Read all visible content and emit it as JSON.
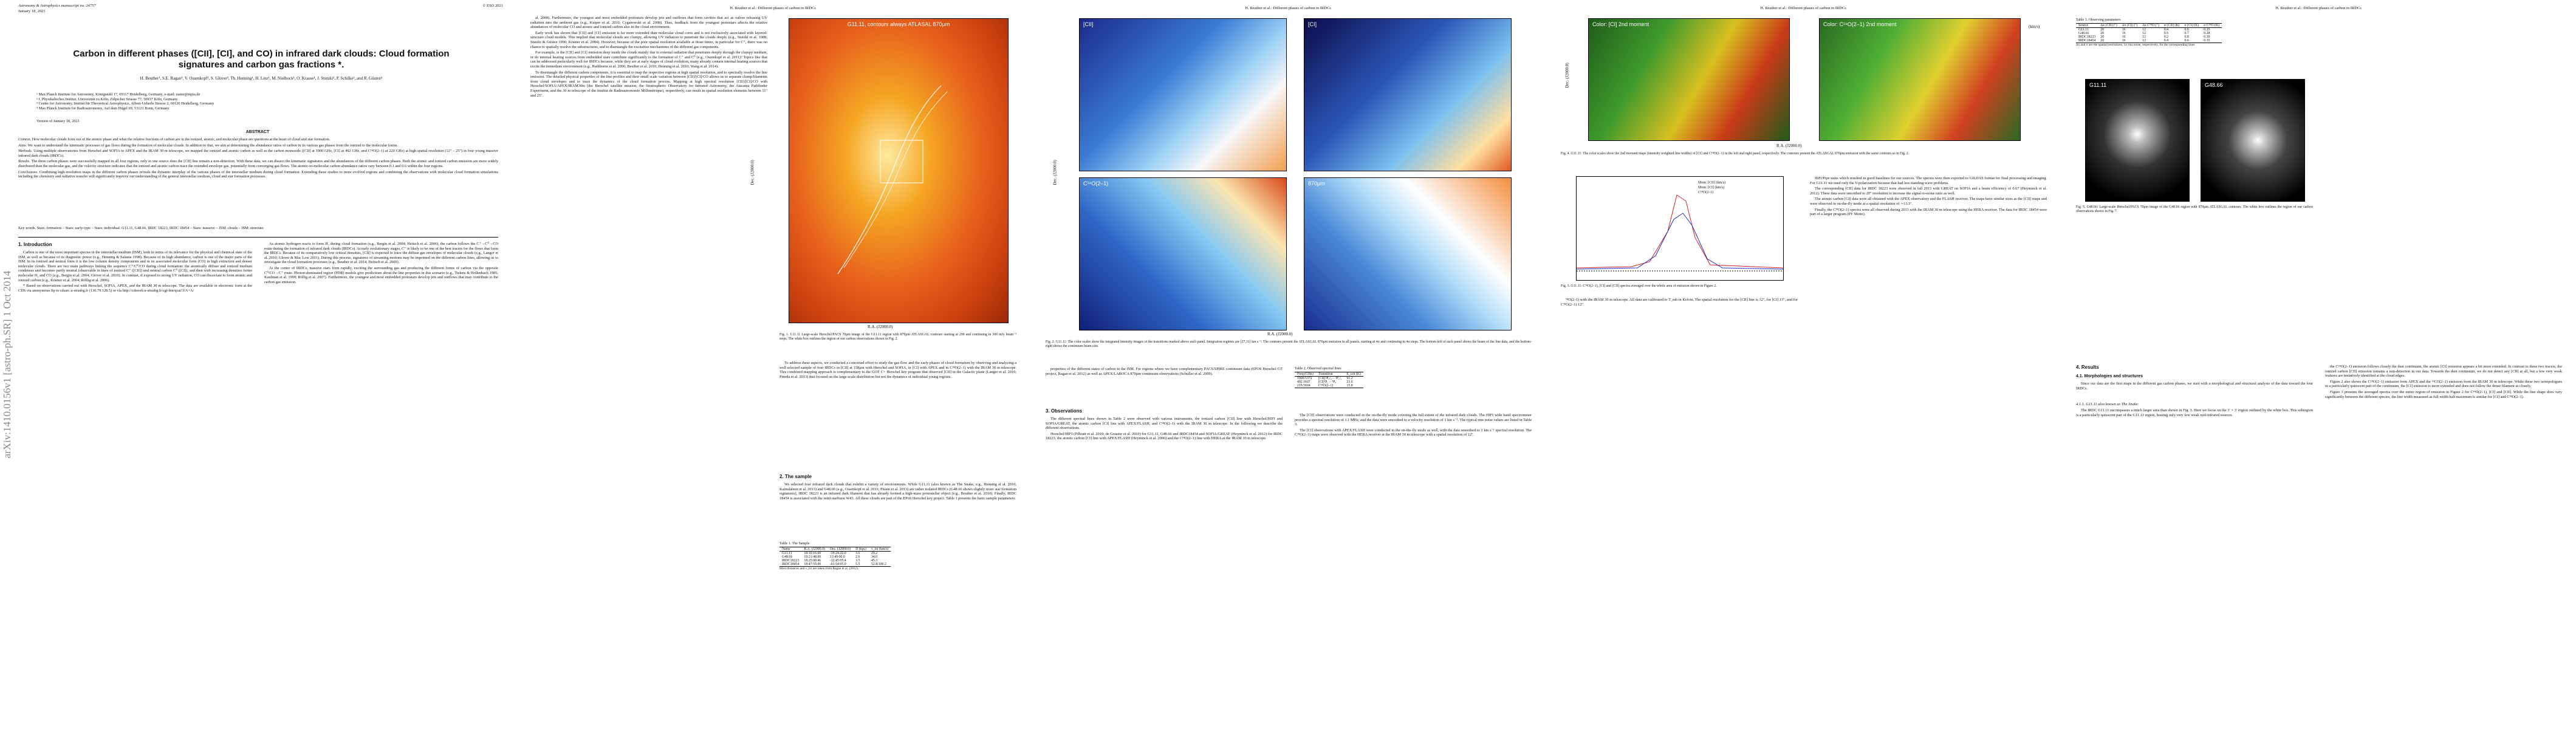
{
  "sidebar": "arXiv:1410.0156v1 [astro-ph.SR] 1 Oct 2014",
  "page1": {
    "journal": "Astronomy & Astrophysics manuscript no. 24757",
    "copyright": "© ESO 2021",
    "date": "January 18, 2021",
    "title": "Carbon in different phases ([CII], [CI], and CO) in infrared dark clouds: Cloud formation signatures and carbon gas fractions *.",
    "authors": "H. Beuther¹, S.E. Ragan¹, V. Ossenkopf², S. Glover³, Th. Henning¹, H. Linz¹, M. Nielbock¹, O. Krause¹, J. Stutzki², P. Schilke², and R. Güsten⁴",
    "affiliations": [
      "¹ Max Planck Institute for Astronomy, Königstuhl 17, 69117 Heidelberg, Germany, e-mail: name@mpia.de",
      "² I. Physikalisches Institut, Universität zu Köln, Zülpicher Strasse 77, 50937 Köln, Germany",
      "³ Center for Astronomy, Institut für Theoretical Astrophysics, Albert-Ueberle Strasse 2, 69120 Heidelberg, Germany",
      "⁴ Max Planck Institute for Radioastronomy, Auf dem Hügel 69, 53121 Bonn, Germany"
    ],
    "version": "Version of January 18, 2021",
    "abstract_heading": "ABSTRACT",
    "abstract": [
      {
        "label": "Context.",
        "text": "How molecular clouds form out of the atomic phase and what the relative fractions of carbon are in the ionized, atomic, and molecular phase are questions at the heart of cloud and star formation."
      },
      {
        "label": "Aims.",
        "text": "We want to understand the kinematic processes of gas flows during the formation of molecular clouds. In addition to that, we aim at determining the abundance ratios of carbon in its various gas phases from the ionized to the molecular forms."
      },
      {
        "label": "Methods.",
        "text": "Using multiple observatories from Herschel and SOFIA to APEX and the IRAM 30 m telescope, we mapped the ionized and atomic carbon as well as the carbon monoxide ([CII] at 1900 GHz, [CI] at 492 GHz, and C¹⁸O(2–1) at 220 GHz) at high spatial resolution (12″ – 25″) in four young massive infrared dark clouds (IRDCs)."
      },
      {
        "label": "Results.",
        "text": "The three carbon phases were successfully mapped in all four regions, only in one source does the [CII] line remain a non-detection. With these data, we can dissect the kinematic signatures and the abundances of the different carbon phases. Both the atomic and ionized carbon emission are more widely distributed than the molecular gas, and the velocity structure indicates that the ionized and atomic carbon trace the extended envelope gas, potentially from converging gas flows. The atomic-to-molecular carbon abundance ratios vary between 0.1 and 0.6 within the four regions."
      },
      {
        "label": "Conclusions.",
        "text": "Combining high-resolution maps in the different carbon phases reveals the dynamic interplay of the various phases of the interstellar medium during cloud formation. Extending these studies to more evolved regions and combining the observations with molecular cloud formation simulations including the chemistry and radiative transfer will significantly improve our understanding of the general interstellar medium, cloud and star formation processes."
      }
    ],
    "keywords": "Key words. Stars: formation – Stars: early-type – Stars: individual: G11.11, G48.66, IRDC 18223, IRDC 18454 – Stars: massive – ISM: clouds – ISM: structure",
    "intro_heading": "1. Introduction",
    "col1": [
      "Carbon is one of the most important species in the interstellar medium (ISM), both in terms of its relevance for the physical and chemical state of the ISM, as well as because of its diagnostic power (e.g., Henning & Salama 1998). Because of its high abundance, carbon is one of the major parts of the ISM. In its ionized and neutral form it is the low column density components and in its associated molecular form (CO) in high extinction and denser molecular clouds. There are two main pathways linking the sequence C⁺/C⁰/CO during cloud formation: the atomically diffuse and ionized medium condenses and becomes partly neutral (observable in lines of ionized C⁺ ([CII]) and neutral carbon C⁰ ([CI]), and then with increasing densities forms molecular H₂ and CO (e.g., Bergin et al. 2004; Glover et al. 2010). In contrast, if exposed to strong UV radiation, CO can dissociate to form atomic and ionized carbon (e.g., Kramer et al. 2004; Röllig et al. 2006).",
      "* Based on observations carried out with Herschel, SOFIA, APEX, and the IRAM 30 m telescope. The data are available in electronic form at the CDS via anonymous ftp to cdsarc.u-strasbg.fr (130.79.128.5) or via http://cdsweb.u-strasbg.fr/cgi-bin/qcat?J/A+A/"
    ],
    "col2": [
      "As atomic hydrogen reacts to form H₂ during cloud formation (e.g., Bergin et al. 2004; Heitsch et al. 2006), the carbon follows the C⁺→C⁰→CO route during the formation of infrared dark clouds (IRDCs). At early evolutionary stages, C⁺ is likely to be one of the best tracers for the flows that form the IRDCs. Because of its comparatively low critical densities, [CII] is expected to trace the diffuse gas envelopes of molecular clouds (e.g., Langer et al. 2010; Glover & Mac Low 2011). During this process, signatures of streaming motions may be imprinted on the different carbon lines, allowing us to investigate the cloud formation processes (e.g., Beuther et al. 2014; Heitsch et al. 2009).",
      "At the center of IRDCs, massive stars form rapidly, exciting the surrounding gas and producing the different forms of carbon via the opposite C⁰/CO→C⁺ route. Photon-dominated region (PDR) models give predictions about the line properties in this scenario (e.g., Tielens & Hollenbach 1985; Kaufman et al. 1999; Röllig et al. 2007). Furthermore, the youngest and most embedded protostars develop jets and outflows that may contribute to the carbon gas emission."
    ]
  },
  "page2": {
    "header": "H. Beuther et al.: Different phases of carbon in IRDCs",
    "col1": [
      "al. 2008). Furthermore, the youngest and most embedded protostars develop jets and outflows that form cavities that act as valves releasing UV radiation into the ambient gas (e.g., Kuiper et al. 2010; Cyganowski et al. 2008). Thus, feedback from the youngest protostars affects the relative abundances of molecular CO and atomic and ionized carbon also in the cloud environment.",
      "Early work has shown that [CII] and [CI] emission is far more extended than molecular cloud cores and is not exclusively associated with layered-structure cloud models. This implied that molecular clouds are clumpy, allowing UV radiation to penetrate the clouds deeply (e.g., Stutzki et al. 1988; Stutzki & Güsten 1990; Kramer et al. 2004). However, because of the poor spatial resolution available at those times, in particular for C⁺, there was no chance to spatially resolve the substructures, and to disentangle the excitation mechanisms of the different gas components.",
      "For example, is the [CII] and [CI] emission deep inside the clouds mainly due to external radiation that penetrates deeply through the clumpy medium, or do internal heating sources from embedded stars contribute significantly to the formation of C⁺ and C⁰ (e.g., Ossenkopf et al. 2011)? Topics like that can be addressed particularly well for IRDCs because, while they are at early stages of cloud evolution, many already contain internal heating sources that excite the immediate environment (e.g., Rathborne et al. 2006; Beuther et al. 2010; Henning et al. 2010; Wang et al. 2014).",
      "To disentangle the different carbon components, it is essential to map the respective regions at high spatial resolution, and to spectrally resolve the line emission. The detailed physical properties of the line profiles and their small scale variation between [CII]/[CI]/CO allows us to separate clump/filaments from cloud envelopes and to trace the dynamics of the cloud formation process. Mapping at high spectral resolution [CII]/[CI]/CO with Herschel/SOFIA/APEX/IRAM30m (the Herschel satellite mission, the Stratospheric Observatory for Infrared Astronomy, the Atacama Pathfinder Experiment, and the 30 m telescope of the Institut de Radioastronomie Millimétrique), respectively, can result in spatial resolution elements between 11″ and 25″."
    ],
    "fig1_title": "G11.11, contours always ATLASAL 870μm",
    "fig1_ra": "R.A. (J2000.0)",
    "fig1_dec": "Dec. (J2000.0)",
    "fig1_caption": "Fig. 1. G11.11 Large-scale Herschel/PACS 70μm image of the G11.11 region with 870μm ATLASGAL contours starting at 200 and continuing in 300 mJy beam⁻¹ steps. The white box outlines the region of our carbon observations shown in Fig. 2.",
    "col2": [
      "To address these aspects, we conducted a concerted effort to study the gas flow and the early phases of cloud formation by observing and analyzing a well selected sample of four IRDCs in [CII] at 158μm with Herschel and SOFIA, in [CI] with APEX and in C¹⁸O(2–1) with the IRAM 30 m telescope. This combined mapping approach is complementary to the GOT C+ Herschel key program that observed [CII] in the Galactic plane (Langer et al. 2010; Pineda et al. 2013) that focused on the large-scale distribution but not the dynamics of individual young regions."
    ],
    "sample_heading": "2. The sample",
    "sample_text": [
      "We selected four infrared dark clouds that exhibit a variety of environments. While G11.11 (also known as The Snake, e.g., Henning et al. 2010; Kainulainen et al. 2013) and G48.66 (e.g., Ossenkopf et al. 2011; Pitann et al. 2013) are rather isolated IRDCs (G48.66 shows slightly more star formation signatures), IRDC 18223 is an infrared dark filament that has already formed a high-mass protostellar object (e.g., Beuther et al. 2010). Finally, IRDC 18454 is associated with the mini-starburst W43. All these clouds are part of the EPoS Herschel key project. Table 1 presents the basic sample parameters."
    ],
    "table1": {
      "caption": "Table 1. The Sample",
      "columns": [
        "Name",
        "R.A. (J2000.0)",
        "Dec. (J2000.0)",
        "D (kpc)",
        "v_lsr (km/s)"
      ],
      "rows": [
        [
          "G11.11",
          "18:10:16.00",
          "-19:24:22.0",
          "3.6",
          "29.2"
        ],
        [
          "G48.66",
          "19:21:48.00",
          "13:49:00.0",
          "2.6",
          "34.0"
        ],
        [
          "IRDC18223",
          "18:25:08.46",
          "-12:45:05.4",
          "3.5",
          "45.3"
        ],
        [
          "IRDC18454",
          "18:47:59.00",
          "-01:54:05.0",
          "5.5",
          "52.8/100.2"
        ]
      ],
      "note": "Most distances and v_lsr are taken from Ragan et al. (2012)."
    }
  },
  "page3": {
    "header": "H. Beuther et al.: Different phases of carbon in IRDCs",
    "fig2_ra": "R.A. (J2000.0)",
    "fig2_dec": "Dec. (J2000.0)",
    "fig2_panels": [
      "[CII]",
      "[CI]",
      "C¹⁸O(2–1)",
      "870μm"
    ],
    "fig2_caption": "Fig. 2. G11.11: The color scales show the integrated intensity images of the transitions marked above each panel. Integration regimes are [27,31] km s⁻¹. The contours present the ATLASGAL 870μm emission in all panels, starting at 4σ and continuing in 4σ steps. The bottom-left of each panel shows the beam of the line data, and the bottom-right shows the continuum beam size.",
    "col1": [
      "properties of the different states of carbon in the ISM. For regions where we have complementary PACS/SPIRE continuum data (EPOS Herschel GT project, Ragan et al. 2012) as well as APEX/LABOCA 870μm continuum observations (Schuller et al. 2009)."
    ],
    "obs_heading": "3. Observations",
    "obs_text": [
      "The different spectral lines shown in Table 2 were observed with various instruments, the ionized carbon [CII] line with Herschel/HIFI and SOFIA/GREAT, the atomic carbon [CI] line with APEX/FLASH, and C¹⁸O(2–1) with the IRAM 30 m telescope. In the following we describe the different observations.",
      "Herschel/HIFI (Pilbratt et al. 2010; de Graauw et al. 2010) for G11.11, G48.66 and IRDC18454 and SOFIA/GREAT (Heyminck et al. 2012) for IRDC 18223, the atomic carbon [CI] line with APEX/FLASH (Heyminck et al. 2006) and the C¹⁸O(2–1) line with HERA at the IRAM 30 m telescope."
    ],
    "table2": {
      "caption": "Table 2. Observed spectral lines",
      "columns": [
        "Freq (GHz)",
        "Transition",
        "E_u/k (K)"
      ],
      "rows": [
        [
          "1900.5372",
          "[CII]²P₃/₂ – ²P₁/₂",
          "91.2"
        ],
        [
          "492.1607",
          "[CI]³P₁ – ³P₀",
          "23.6"
        ],
        [
          "219.5604",
          "C¹⁸O(2–1)",
          "15.8"
        ]
      ]
    },
    "col2": [
      "The [CII] observations were conducted in the on-the-fly mode covering the full extent of the infrared dark clouds. The HIFI wide band spectrometer provides a spectral resolution of 1.1 MHz, and the data were smoothed to a velocity resolution of 1 km s⁻¹. The typical rms noise values are listed in Table 3.",
      "The [CI] observations with APEX/FLASH were conducted in the on-the-fly mode as well, with the data smoothed to 1 km s⁻¹ spectral resolution. The C¹⁸O(2–1) maps were observed with the HERA receiver at the IRAM 30 m telescope with a spatial resolution of 12″."
    ]
  },
  "page4": {
    "header": "H. Beuther et al.: Different phases of carbon in IRDCs",
    "fig4_panels": [
      "Color: [CI] 2nd moment",
      "Color: C¹⁸O(2–1) 2nd moment"
    ],
    "fig4_ra": "R.A. (J2000.0)",
    "fig4_dec": "Dec. (J2000.0)",
    "fig4_unit": "(km/s)",
    "fig4_caption": "Fig. 4. G11.11: The color scales show the 2nd moment maps (intensity weighted line widths) of [CI] and C¹⁸O(2–1) in the left and right panel, respectively. The contours present the ATLASGAL 870μm emission with the same contours as in Fig. 2.",
    "fig3_legend": [
      "Mom. [CII] (km/s)",
      "Mom. [CI] (km/s)",
      "C¹⁸O(2–1)"
    ],
    "fig3_caption": "Fig. 3. G11.11: C¹⁸O(2–1), [CI] and [CII] spectra averaged over the whole area of emission shown in Figure 2.",
    "col1": [
      "¹⁸O(2–1) with the IRAM 30 m telescope. All data are calibrated to T_mb in Kelvin. The spatial resolution for the [CII] line is 12″, for [CI] 13″, and for C¹⁸O(2–1) 12″."
    ],
    "col2": [
      "HiFi/Pipe tasks which resulted in good baselines for our sources. The spectra were then exported to GILDAS format for final processing and imaging. For G11.11 we used only the V-polarization because that had less standing wave problems.",
      "The corresponding [CII] data for IRDC 18223 were observed in fall 2013 with GREAT on SOFIA and a beam efficiency of 0.67 (Heyminck et al. 2012). These data were smoothed to 20″ resolution to increase the signal-to-noise ratio as well.",
      "The atomic carbon [CI] data were all obtained with the APEX observatory and the FLASH receiver. The maps have similar sizes as the [CII] maps and were observed in on-the-fly mode at a spatial resolution of ∼13.5″.",
      "Finally, the C¹⁸O(2–1) spectra were all observed during 2013 with the IRAM 30 m telescope using the HERA receiver. The data for IRDC 18454 were part of a larger program (PI: Motte)."
    ]
  },
  "page5": {
    "header": "H. Beuther et al.: Different phases of carbon in IRDCs",
    "table3": {
      "caption": "Table 3. Observing parameters",
      "columns": [
        "Source",
        "Δx [CII] (″)",
        "Δx [CI] (″)",
        "Δx C¹⁸O (″)",
        "σ [CII] (K)",
        "σ [CI] (K)",
        "σ C¹⁸O (K)"
      ],
      "rows": [
        [
          "G11.11",
          "20",
          "16",
          "12",
          "0.4",
          "0.6",
          "0.25"
        ],
        [
          "G48.66",
          "20",
          "16",
          "12",
          "0.5",
          "0.7",
          "0.28"
        ],
        [
          "IRDC18223",
          "20",
          "16",
          "12",
          "0.2",
          "0.8",
          "0.30"
        ],
        [
          "IRDC18454",
          "20",
          "16",
          "12",
          "0.4",
          "0.6",
          "0.35"
        ]
      ],
      "note": "Δx and σ are the spatial resolutions, 1σ rms noise, respectively, for the corresponding lines."
    },
    "fig5_labels": [
      "G11.11",
      "G48.66"
    ],
    "fig5_caption": "Fig. 5. G48.66: Large-scale Herschel/PACS 70μm image of the G48.66 region with 870μm ATLASGAL contours. The white box outlines the region of our carbon observations shown in Fig. 7.",
    "results_heading": "4. Results",
    "morph_heading": "4.1. Morphologies and structures",
    "morph_text": [
      "Since our data are the first maps in the different gas carbon phases, we start with a morphological and structural analysis of the data toward the four IRDCs."
    ],
    "snake_heading": "4.1.1. G11.11 also known as The Snake:",
    "snake_text": [
      "The IRDC G11.11 encompasses a much larger area than shown in Fig. 1. Here we focus on the 3′ × 3′ region outlined by the white box. This subregion is a particularly quiescent part of the G11.11 region, hosting only very few weak mid-infrared sources."
    ],
    "col2": [
      "the C¹⁸O(2–1) emission follows closely the dust continuum, the atomic [CI] emission appears a bit more extended. In contrast to these two tracers, the ionized carbon [CII] emission remains a non-detection in our data. Towards the dust continuum, we do not detect any [CII] at all, but a few very weak features are tentatively identified at the cloud edges.",
      "Figure 2 also shows the C¹⁸O(2–1) emission from APEX and the ¹³CO(2–1) emission from the IRAM 30 m telescope. While these two isotopologues in a particularly quiescent part of the continuum, the [CI] emission is more extended and does not follow the dense filament as closely.",
      "Figure 3 presents the averaged spectra over the entire region of emission in Figure 2 for C¹⁸O(2–1), [CI] and [CII]. While the line shape does vary significantly between the different species, the line width measured as full width half maximum is similar for [CI] and C¹⁸O(2–1)."
    ]
  }
}
